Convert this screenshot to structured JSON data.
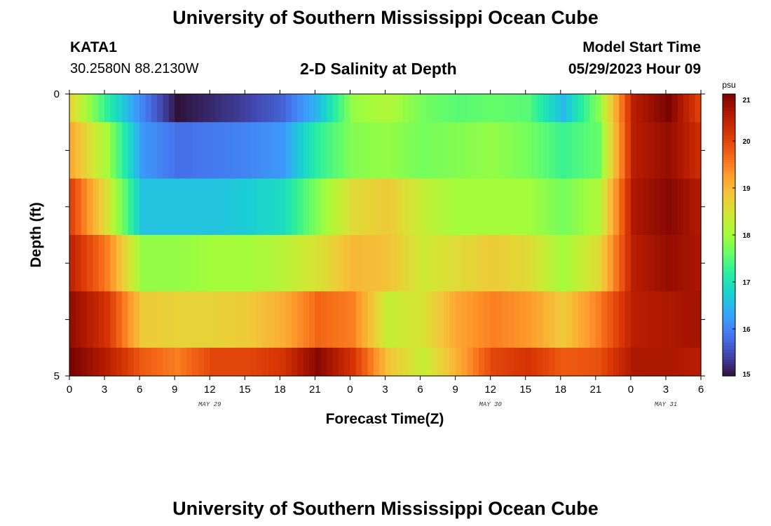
{
  "header": {
    "title_top": "University of Southern Mississippi Ocean Cube",
    "station": "KATA1",
    "coords": "30.2580N  88.2130W",
    "plot_title": "2-D Salinity at Depth",
    "model_label": "Model Start Time",
    "model_time": "05/29/2023 Hour 09",
    "title_bottom": "University of Southern Mississippi Ocean Cube"
  },
  "chart_data": {
    "type": "heatmap",
    "title": "2-D Salinity at Depth",
    "xlabel": "Forecast Time(Z)",
    "ylabel": "Depth (ft)",
    "x_tick_labels": [
      "0",
      "3",
      "6",
      "9",
      "12",
      "15",
      "18",
      "21",
      "0",
      "3",
      "6",
      "9",
      "12",
      "15",
      "18",
      "21",
      "0",
      "3",
      "6"
    ],
    "date_labels": [
      "MAY 29",
      "MAY 30",
      "MAY 31"
    ],
    "y_tick_labels": [
      "0",
      "5"
    ],
    "ylim": [
      0,
      5
    ],
    "colorbar": {
      "unit": "psu",
      "range": [
        15,
        21
      ],
      "tick_labels": [
        "15",
        "16",
        "17",
        "18",
        "19",
        "20",
        "21"
      ],
      "colors": [
        "#30123b",
        "#4145ab",
        "#4675ed",
        "#39a2fc",
        "#1bcfd4",
        "#24eca6",
        "#61fc6c",
        "#a4fc3b",
        "#d1e834",
        "#f3c63a",
        "#fe9b2d",
        "#f36315",
        "#d93806",
        "#b11901",
        "#7a0402"
      ]
    },
    "depth_rows": [
      "0.0-0.5 ft",
      "0.5-1.5 ft",
      "1.5-2.5 ft",
      "2.5-3.5 ft",
      "3.5-4.5 ft",
      "4.5-5.0 ft"
    ],
    "hours": [
      0,
      3,
      6,
      9,
      12,
      15,
      18,
      21,
      24,
      27,
      30,
      33,
      36,
      39,
      42,
      45,
      48,
      51,
      54
    ],
    "series": [
      {
        "name": "0.0-0.5 ft",
        "values": [
          18.6,
          17.2,
          16.0,
          15.0,
          15.2,
          15.4,
          15.7,
          16.5,
          17.9,
          18.1,
          17.7,
          17.5,
          17.6,
          17.5,
          16.5,
          17.8,
          20.5,
          21.0,
          19.9
        ]
      },
      {
        "name": "0.5-1.5 ft",
        "values": [
          19.1,
          18.0,
          16.2,
          15.8,
          15.9,
          16.0,
          16.2,
          17.2,
          17.8,
          17.9,
          17.7,
          17.8,
          17.9,
          17.7,
          17.3,
          17.6,
          20.5,
          20.8,
          20.2
        ]
      },
      {
        "name": "1.5-2.5 ft",
        "values": [
          20.0,
          18.5,
          16.6,
          16.6,
          16.6,
          16.7,
          16.9,
          17.8,
          18.6,
          18.8,
          18.3,
          18.0,
          18.0,
          18.0,
          17.7,
          18.1,
          20.6,
          20.9,
          20.5
        ]
      },
      {
        "name": "2.5-3.5 ft",
        "values": [
          20.4,
          19.5,
          17.9,
          17.9,
          18.0,
          18.0,
          18.2,
          18.5,
          19.0,
          18.9,
          18.4,
          18.6,
          18.8,
          18.6,
          18.0,
          18.6,
          20.5,
          20.8,
          20.6
        ]
      },
      {
        "name": "3.5-4.5 ft",
        "values": [
          20.8,
          20.2,
          18.8,
          18.7,
          18.7,
          18.8,
          19.1,
          19.7,
          19.5,
          18.3,
          18.5,
          19.2,
          19.5,
          19.3,
          18.8,
          19.5,
          20.5,
          20.6,
          20.7
        ]
      },
      {
        "name": "4.5-5.0 ft",
        "values": [
          21.0,
          20.5,
          19.8,
          19.5,
          20.0,
          20.0,
          20.2,
          20.9,
          20.2,
          18.9,
          18.3,
          19.1,
          20.0,
          20.2,
          19.8,
          19.9,
          20.6,
          20.6,
          20.5
        ]
      }
    ]
  }
}
